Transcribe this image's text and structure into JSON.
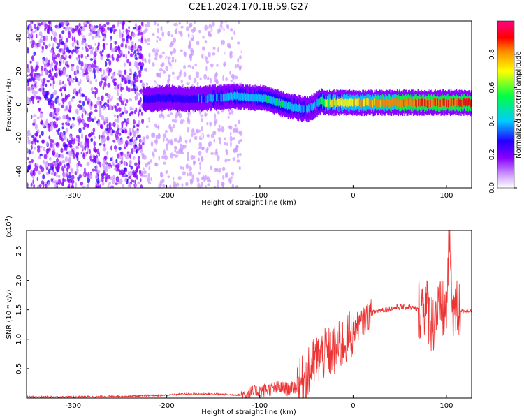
{
  "title": "C2E1.2024.170.18.59.G27",
  "colors": {
    "snr_line": "#ee3333",
    "colormap": [
      "#ffffff",
      "#cc99ff",
      "#8800ff",
      "#2200ff",
      "#00ccff",
      "#00ff44",
      "#ffff00",
      "#ff8800",
      "#ff0000",
      "#ff0088"
    ]
  },
  "chart_data": [
    {
      "type": "heatmap",
      "xlabel": "Height of straight line (km)",
      "ylabel": "Frequency (Hz)",
      "xlim": [
        -350,
        127
      ],
      "ylim": [
        -50,
        50
      ],
      "x_ticks": [
        -300,
        -200,
        -100,
        0,
        100
      ],
      "y_ticks": [
        -40,
        -20,
        0,
        20,
        40
      ],
      "colorbar": {
        "label": "Normalized spectral amplitude",
        "range": [
          0,
          1
        ],
        "ticks": [
          "0.0",
          "0.2",
          "0.4",
          "0.6",
          "0.8"
        ]
      },
      "ridge": {
        "x": [
          -225,
          -200,
          -175,
          -150,
          -125,
          -110,
          -100,
          -90,
          -80,
          -70,
          -60,
          -50,
          -45,
          -40,
          -35,
          -30,
          0,
          50,
          100,
          127
        ],
        "y": [
          3,
          4,
          3,
          4,
          5,
          4,
          4,
          3,
          1,
          -1,
          -2,
          -3,
          -2,
          0,
          2,
          1,
          1,
          1,
          1,
          1
        ],
        "amplitude": [
          0.35,
          0.35,
          0.35,
          0.4,
          0.45,
          0.45,
          0.45,
          0.5,
          0.5,
          0.5,
          0.45,
          0.4,
          0.4,
          0.4,
          0.55,
          0.6,
          0.7,
          0.8,
          0.85,
          0.85
        ]
      },
      "noise_bands": [
        {
          "x": [
            -350,
            -225
          ],
          "amplitude": 0.2
        },
        {
          "x": [
            -225,
            -120
          ],
          "amplitude": 0.08
        }
      ]
    },
    {
      "type": "line",
      "xlabel": "Height of straight line (km)",
      "ylabel": "SNR (10 * v/v)",
      "scale_label": "(x10",
      "scale_exp": "4",
      "scale_close": ")",
      "xlim": [
        -350,
        127
      ],
      "ylim": [
        0,
        2.85
      ],
      "x_ticks": [
        -300,
        -200,
        -100,
        0,
        100
      ],
      "y_ticks": [
        "0.5",
        "1.0",
        "1.5",
        "2.0",
        "2.5"
      ],
      "series": [
        {
          "x": [
            -350,
            -300,
            -250,
            -200,
            -180,
            -150,
            -120,
            -100,
            -90,
            -80,
            -70,
            -60,
            -50,
            -40,
            -30,
            -20,
            -10,
            0,
            10,
            20,
            30,
            40,
            50,
            60,
            70,
            75,
            80,
            85,
            90,
            95,
            100,
            103,
            106,
            110,
            120,
            127
          ],
          "y": [
            0.02,
            0.02,
            0.03,
            0.05,
            0.07,
            0.07,
            0.05,
            0.12,
            0.15,
            0.18,
            0.15,
            0.2,
            0.35,
            0.65,
            0.75,
            0.8,
            0.95,
            1.15,
            1.3,
            1.45,
            1.5,
            1.52,
            1.55,
            1.55,
            1.5,
            1.6,
            1.5,
            1.25,
            1.5,
            1.45,
            1.5,
            2.85,
            1.6,
            1.5,
            1.48,
            1.48
          ]
        }
      ]
    }
  ]
}
